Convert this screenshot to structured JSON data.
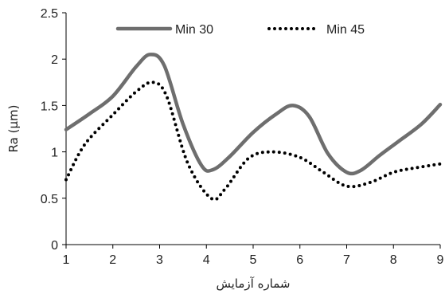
{
  "chart_data": {
    "type": "line",
    "title": "",
    "xlabel": "شماره آزمایش",
    "ylabel": "Ra (µm)",
    "xlim": [
      1,
      9
    ],
    "ylim": [
      0,
      2.5
    ],
    "x_ticks": [
      "1",
      "2",
      "3",
      "4",
      "5",
      "6",
      "7",
      "8",
      "9"
    ],
    "y_ticks": [
      "0",
      "0.5",
      "1",
      "1.5",
      "2",
      "2.5"
    ],
    "grid": false,
    "legend_position": "top",
    "series": [
      {
        "name": "Min 30",
        "color": "#6e6e6e",
        "style": "solid",
        "x": [
          1,
          1.5,
          2,
          2.5,
          2.8,
          3.1,
          3.5,
          3.9,
          4.15,
          4.5,
          5,
          5.5,
          5.85,
          6.2,
          6.6,
          7,
          7.3,
          7.7,
          8.1,
          8.6,
          9
        ],
        "y": [
          1.24,
          1.41,
          1.6,
          1.92,
          2.05,
          1.93,
          1.3,
          0.85,
          0.81,
          0.95,
          1.21,
          1.41,
          1.5,
          1.38,
          0.98,
          0.78,
          0.8,
          0.96,
          1.11,
          1.3,
          1.51
        ]
      },
      {
        "name": "Min 45",
        "color": "#000000",
        "style": "dotted",
        "x": [
          1,
          1.4,
          2,
          2.5,
          2.85,
          3.15,
          3.6,
          4.1,
          4.4,
          4.9,
          5.4,
          6,
          6.5,
          7,
          7.5,
          8,
          8.5,
          9
        ],
        "y": [
          0.7,
          1.08,
          1.4,
          1.65,
          1.75,
          1.6,
          0.88,
          0.5,
          0.6,
          0.93,
          1.0,
          0.94,
          0.78,
          0.63,
          0.67,
          0.78,
          0.83,
          0.87
        ]
      }
    ]
  }
}
